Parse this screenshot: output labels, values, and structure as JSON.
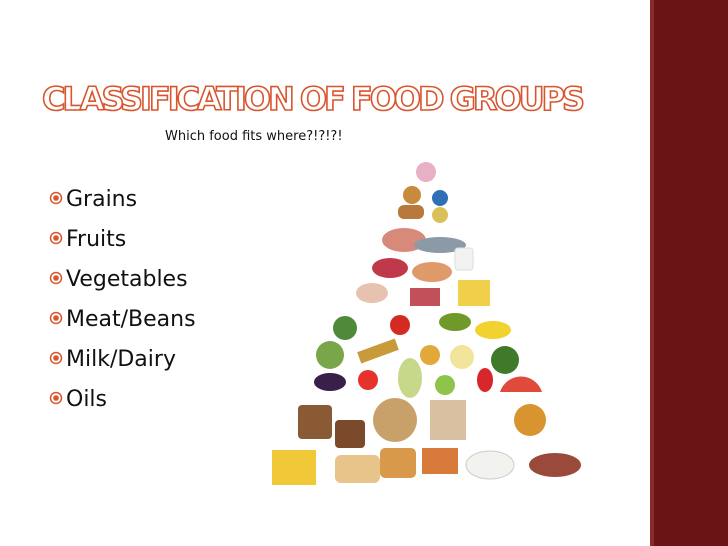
{
  "slide": {
    "title": "Classification of Food Groups",
    "subtitle": "Which food fits where?!?!?!",
    "bullets": [
      "Grains",
      "Fruits",
      "Vegetables",
      "Meat/Beans",
      "Milk/Dairy",
      "Oils"
    ]
  }
}
